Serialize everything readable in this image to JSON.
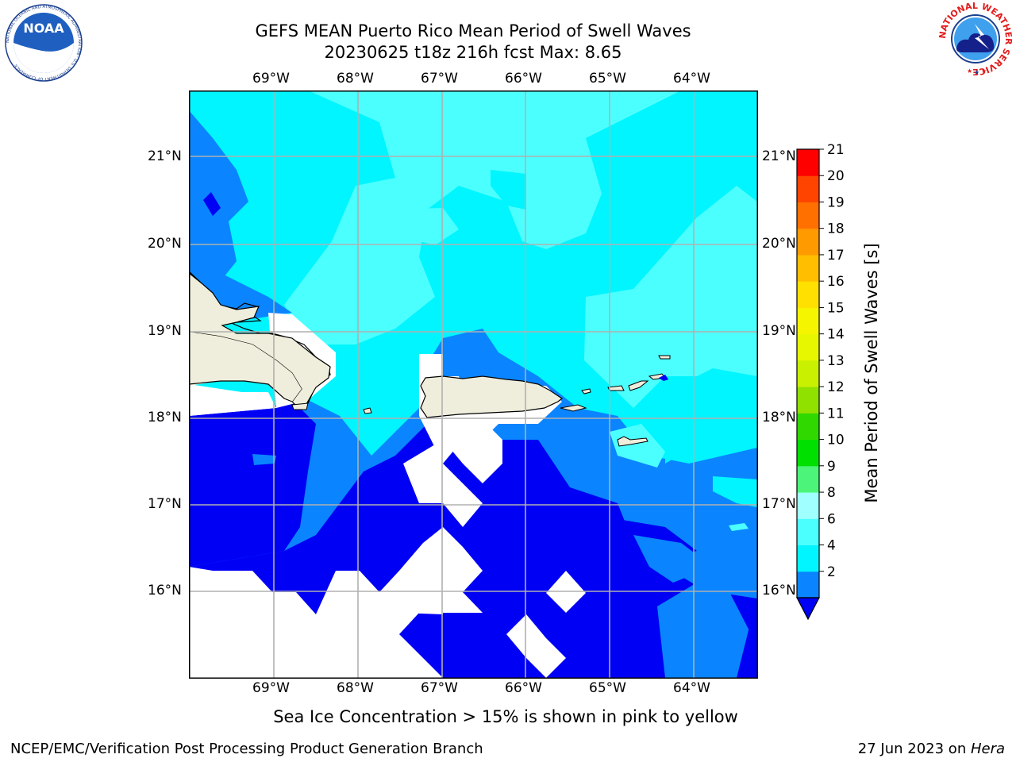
{
  "title": {
    "line1": "GEFS MEAN Puerto Rico Mean Period of Swell Waves",
    "line2": "20230625 t18z 216h fcst   Max: 8.65"
  },
  "logos": {
    "noaa_text": "NOAA",
    "noaa_ring_text": "NATIONAL OCEANIC AND ATMOSPHERIC ADMINISTRATION · U.S. DEPARTMENT OF COMMERCE",
    "nws_ring_text": "NATIONAL WEATHER SERVICE"
  },
  "map": {
    "lon_labels": [
      "69°W",
      "68°W",
      "67°W",
      "66°W",
      "65°W",
      "64°W"
    ],
    "lat_labels": [
      "21°N",
      "20°N",
      "19°N",
      "18°N",
      "17°N",
      "16°N"
    ],
    "colors": {
      "water_2_4": "#0000f5",
      "water_4_6": "#0a85ff",
      "water_6_8": "#00f5ff",
      "water_8_9": "#4cffff",
      "land": "#efeedc",
      "grid": "#b0b0b0"
    }
  },
  "colorbar": {
    "label": "Mean Period of Swell Waves [s]",
    "ticks": [
      "21",
      "20",
      "19",
      "18",
      "17",
      "16",
      "15",
      "14",
      "13",
      "12",
      "11",
      "10",
      "9",
      "8",
      "6",
      "4",
      "2"
    ],
    "colors_bottom_to_top": [
      "#0a85ff",
      "#00f5ff",
      "#4cffff",
      "#a0ffff",
      "#4cf57a",
      "#00e000",
      "#30d800",
      "#90e000",
      "#c8f000",
      "#e6f700",
      "#f5f500",
      "#ffe000",
      "#ffbe00",
      "#ff9a00",
      "#ff7000",
      "#ff4400",
      "#ff0000"
    ],
    "under_color": "#0000f5"
  },
  "footer": {
    "note": "Sea Ice Concentration > 15% is shown in pink to yellow",
    "credit": "NCEP/EMC/Verification Post Processing Product Generation Branch",
    "date_prefix": "27 Jun 2023 on ",
    "date_host": "Hera"
  }
}
